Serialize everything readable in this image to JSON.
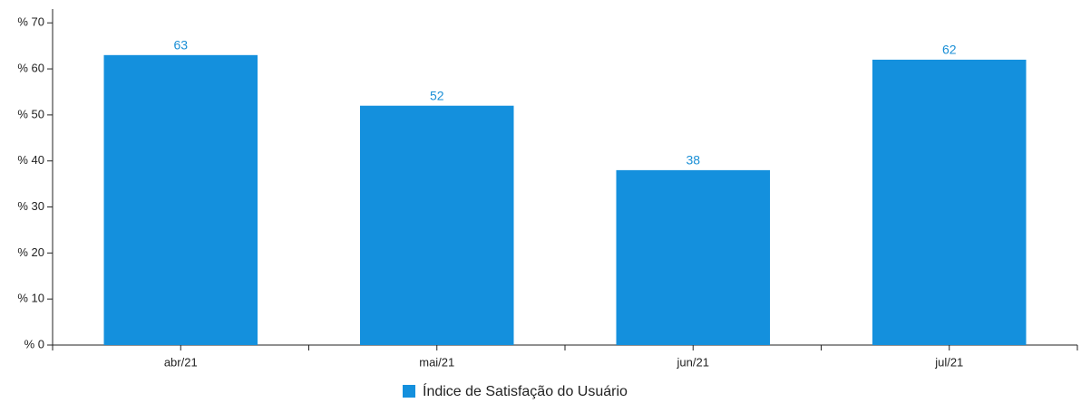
{
  "chart_data": {
    "type": "bar",
    "categories": [
      "abr/21",
      "mai/21",
      "jun/21",
      "jul/21"
    ],
    "series": [
      {
        "name": "Índice de Satisfação do Usuário",
        "color": "#1490dd",
        "values": [
          63,
          52,
          38,
          62
        ]
      }
    ],
    "ylim": [
      0,
      73
    ],
    "yticks": [
      {
        "value": 0,
        "label": "% 0"
      },
      {
        "value": 10,
        "label": "% 10"
      },
      {
        "value": 20,
        "label": "% 20"
      },
      {
        "value": 30,
        "label": "% 30"
      },
      {
        "value": 40,
        "label": "% 40"
      },
      {
        "value": 50,
        "label": "% 50"
      },
      {
        "value": 60,
        "label": "% 60"
      },
      {
        "value": 70,
        "label": "% 70"
      }
    ],
    "grid": false,
    "legend": "bottom"
  }
}
